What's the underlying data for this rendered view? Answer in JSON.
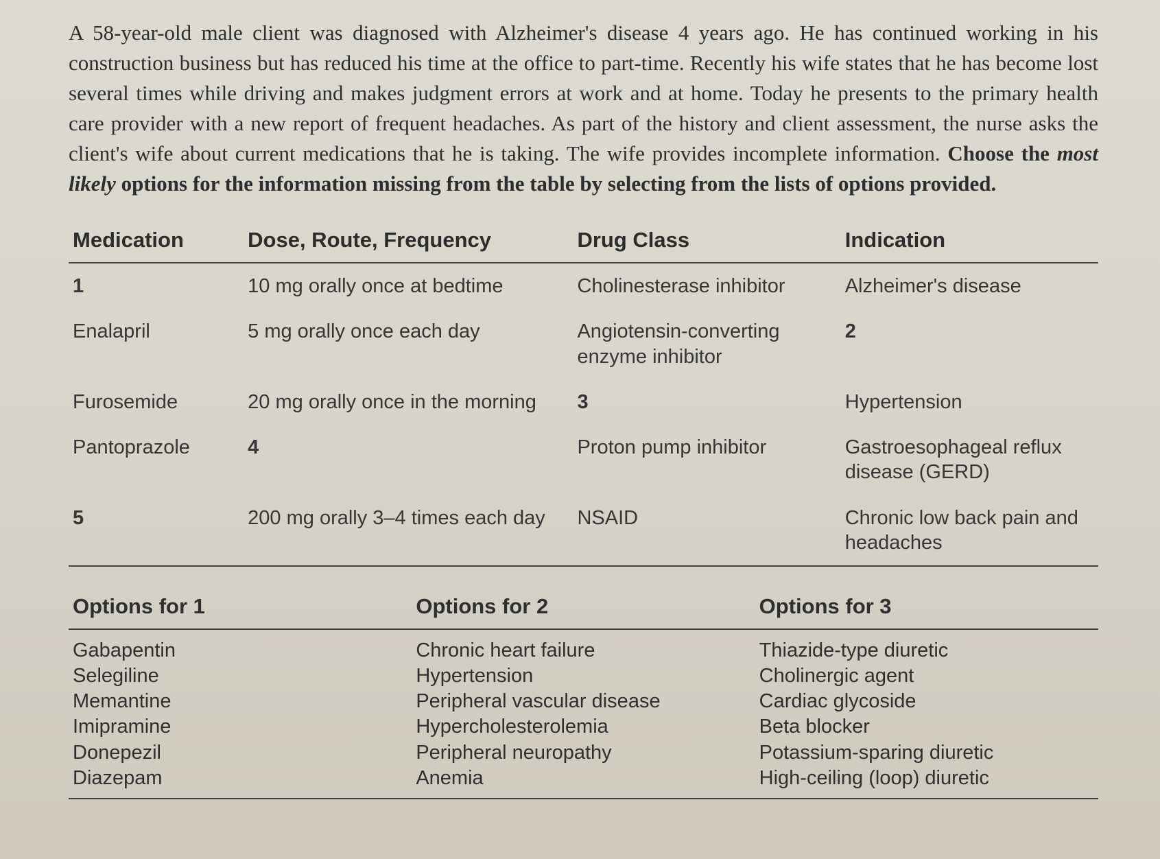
{
  "scenario": {
    "part1": "A 58-year-old male client was diagnosed with Alzheimer's disease 4 years ago. He has continued working in his construction business but has reduced his time at the office to part-time. Recently his wife states that he has become lost several times while driving and makes judgment errors at work and at home. Today he presents to the primary health care provider with a new report of frequent headaches. As part of the history and client assessment, the nurse asks the client's wife about current medications that he is taking. The wife provides incomplete information. ",
    "bold_lead": "Choose the ",
    "italic_word": "most likely",
    "bold_tail": " options for the information missing from the table by selecting from the lists of options provided."
  },
  "med_table": {
    "headers": {
      "medication": "Medication",
      "dose": "Dose, Route, Frequency",
      "class": "Drug Class",
      "indication": "Indication"
    },
    "rows": [
      {
        "medication_blank": "1",
        "medication": "",
        "dose": "10 mg orally once at bedtime",
        "class": "Cholinesterase inhibitor",
        "indication": "Alzheimer's disease"
      },
      {
        "medication": "Enalapril",
        "dose": "5 mg orally once each day",
        "class": "Angiotensin-converting enzyme inhibitor",
        "indication_blank": "2",
        "indication": ""
      },
      {
        "medication": "Furosemide",
        "dose": "20 mg orally once in the morning",
        "class_blank": "3",
        "class": "",
        "indication": "Hypertension"
      },
      {
        "medication": "Pantoprazole",
        "dose_blank": "4",
        "dose": "",
        "class": "Proton pump inhibitor",
        "indication": "Gastroesophageal reflux disease (GERD)"
      },
      {
        "medication_blank": "5",
        "medication": "",
        "dose": "200 mg orally 3–4 times each day",
        "class": "NSAID",
        "indication": "Chronic low back pain and headaches"
      }
    ]
  },
  "options_table": {
    "headers": {
      "opt1": "Options for 1",
      "opt2": "Options for 2",
      "opt3": "Options for 3"
    },
    "options1": [
      "Gabapentin",
      "Selegiline",
      "Memantine",
      "Imipramine",
      "Donepezil",
      "Diazepam"
    ],
    "options2": [
      "Chronic heart failure",
      "Hypertension",
      "Peripheral vascular disease",
      "Hypercholesterolemia",
      "Peripheral neuropathy",
      "Anemia"
    ],
    "options3": [
      "Thiazide-type diuretic",
      "Cholinergic agent",
      "Cardiac glycoside",
      "Beta blocker",
      "Potassium-sparing diuretic",
      "High-ceiling (loop) diuretic"
    ]
  }
}
